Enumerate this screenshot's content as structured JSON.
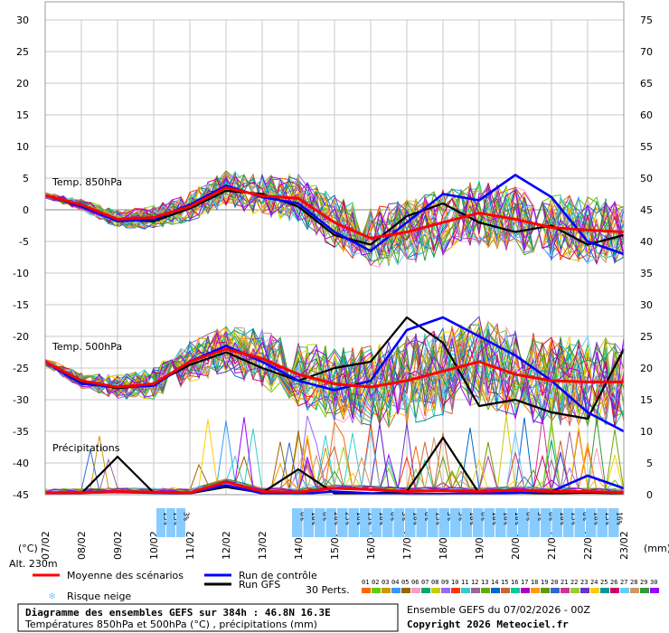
{
  "chart_data": {
    "type": "line",
    "title": "Diagramme des ensembles GEFS sur 384h : 46.8N 16.3E",
    "subtitle": "Températures 850hPa et 500hPa (°C) , précipitations (mm)",
    "run_info": "Ensemble GEFS du 07/02/2026 - 00Z",
    "copyright": "Copyright 2026 Meteociel.fr",
    "left_axis": {
      "label": "(°C)",
      "ticks": [
        30,
        25,
        20,
        15,
        10,
        5,
        0,
        -5,
        -10,
        -15,
        -20,
        -25,
        -30,
        -35,
        -40,
        -45
      ],
      "range": [
        -45,
        30
      ]
    },
    "right_axis": {
      "label": "(mm)",
      "ticks": [
        75,
        70,
        65,
        60,
        55,
        50,
        45,
        40,
        35,
        30,
        25,
        20,
        15,
        10,
        5,
        0
      ],
      "range": [
        0,
        75
      ]
    },
    "dates": [
      "07/02",
      "08/02",
      "09/02",
      "10/02",
      "11/02",
      "12/02",
      "13/02",
      "14/02",
      "15/02",
      "16/02",
      "17/02",
      "18/02",
      "19/02",
      "20/02",
      "21/02",
      "22/02",
      "23/02"
    ],
    "altitude": "Alt. 230m",
    "section_labels": {
      "t850": "Temp. 850hPa",
      "t500": "Temp. 500hPa",
      "precip": "Précipitations"
    },
    "legend": {
      "mean": "Moyenne des scénarios",
      "control": "Run de contrôle",
      "gfs": "Run GFS",
      "snow": "Risque neige",
      "perts": "30 Perts.",
      "pert_numbers": [
        "01",
        "02",
        "03",
        "04",
        "05",
        "06",
        "07",
        "08",
        "09",
        "10",
        "11",
        "12",
        "13",
        "14",
        "15",
        "16",
        "17",
        "18",
        "19",
        "20",
        "21",
        "22",
        "23",
        "24",
        "25",
        "26",
        "27",
        "28",
        "29",
        "30"
      ]
    },
    "colors": {
      "mean": "#ff0000",
      "control": "#0000ff",
      "gfs": "#000000",
      "snow": "#88ccff",
      "perts": [
        "#ff6600",
        "#66cc00",
        "#cc9900",
        "#3399ff",
        "#996600",
        "#ff99cc",
        "#00aa66",
        "#cccc00",
        "#9966ff",
        "#ff3300",
        "#33cccc",
        "#996699",
        "#66aa00",
        "#0066cc",
        "#cc6633",
        "#00cc99",
        "#aa00cc",
        "#ff9900",
        "#669900",
        "#3366cc",
        "#cc3399",
        "#99cc33",
        "#6633cc",
        "#ffcc00",
        "#009999",
        "#cc0066",
        "#66ccff",
        "#cc9966",
        "#339933",
        "#9900ff"
      ]
    },
    "snow_risk": {
      "early": [
        "13%",
        "13%",
        "3%"
      ],
      "late": [
        "6%",
        "10%",
        "6%",
        "20%",
        "23%",
        "16%",
        "13%",
        "10%",
        "6%",
        "3%",
        "10%",
        "6%",
        "13%",
        "3%",
        "3%",
        "10%",
        "6%",
        "10%",
        "10%",
        "10%",
        "6%",
        "3%",
        "6%",
        "10%",
        "13%",
        "6%",
        "10%",
        "13%",
        "16%"
      ]
    },
    "mean_t850": [
      2.3,
      0.8,
      -1.5,
      -1.2,
      0.5,
      3.5,
      2.2,
      1.8,
      -2.0,
      -4.5,
      -3.5,
      -2.0,
      -0.5,
      -1.5,
      -2.8,
      -3.2,
      -3.5
    ],
    "mean_t500": [
      -24,
      -27,
      -28,
      -27.5,
      -24,
      -22,
      -23.5,
      -26,
      -27.5,
      -28,
      -27,
      -25.5,
      -24,
      -26,
      -27,
      -27.2,
      -27.2
    ],
    "mean_precip": [
      0.3,
      0.3,
      0.5,
      0.4,
      0.3,
      2.0,
      0.5,
      0.4,
      1.0,
      0.8,
      0.5,
      0.6,
      0.5,
      0.7,
      0.5,
      0.5,
      0.3
    ],
    "control_t850": [
      2.3,
      0.6,
      -1.8,
      -1.5,
      0.8,
      3.8,
      2.0,
      1.0,
      -3.5,
      -6.5,
      -2.0,
      2.5,
      1.5,
      5.5,
      2.0,
      -5.0,
      -7.0
    ],
    "control_t500": [
      -24,
      -27.5,
      -28,
      -27.8,
      -24,
      -21.5,
      -24,
      -27,
      -28.5,
      -27,
      -19,
      -17,
      -20,
      -23,
      -27,
      -32,
      -35
    ],
    "control_precip": [
      0.2,
      0.3,
      0.4,
      0.3,
      0.3,
      1.5,
      0.2,
      0.1,
      0.5,
      0.2,
      0.1,
      0.1,
      0.2,
      0.3,
      0.5,
      3.0,
      1.0
    ],
    "gfs_t850": [
      2.3,
      0.5,
      -1.6,
      -1.8,
      0.2,
      3.0,
      2.5,
      0.5,
      -4.0,
      -5.5,
      -1.0,
      1.0,
      -2.0,
      -3.5,
      -2.5,
      -5.5,
      -4.0
    ],
    "gfs_t500": [
      -24,
      -27.2,
      -28.2,
      -27.5,
      -24.5,
      -22.5,
      -25,
      -27,
      -25,
      -24,
      -17,
      -21,
      -31,
      -30,
      -32,
      -33,
      -22
    ],
    "gfs_precip": [
      0.2,
      0.2,
      6.0,
      0.3,
      0.2,
      1.2,
      0.3,
      4.0,
      0.2,
      0.2,
      0.5,
      9.0,
      0.2,
      0.3,
      0.2,
      0.3,
      0.2
    ]
  }
}
